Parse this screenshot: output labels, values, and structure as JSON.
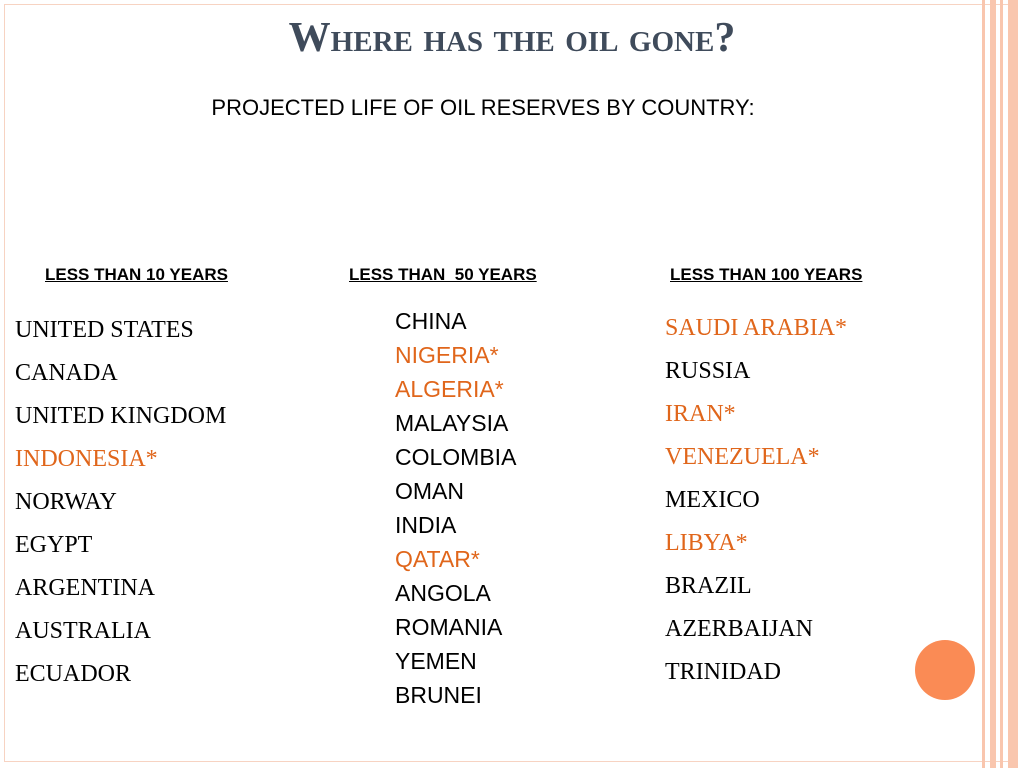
{
  "title": "Where has the oil gone?",
  "subtitle": "PROJECTED LIFE OF OIL RESERVES BY COUNTRY:",
  "columns": [
    {
      "header": "LESS THAN 10 YEARS",
      "items": [
        {
          "text": "UNITED STATES",
          "color": "#000000"
        },
        {
          "text": "CANADA",
          "color": "#000000"
        },
        {
          "text": "UNITED KINGDOM",
          "color": "#000000"
        },
        {
          "text": "INDONESIA*",
          "color": "#e0661b"
        },
        {
          "text": "NORWAY",
          "color": "#000000"
        },
        {
          "text": "EGYPT",
          "color": "#000000"
        },
        {
          "text": "ARGENTINA",
          "color": "#000000"
        },
        {
          "text": "AUSTRALIA",
          "color": "#000000"
        },
        {
          "text": "ECUADOR",
          "color": "#000000"
        }
      ]
    },
    {
      "header": "LESS THAN  50 YEARS",
      "items": [
        {
          "text": "CHINA",
          "color": "#000000"
        },
        {
          "text": "NIGERIA*",
          "color": "#e0661b"
        },
        {
          "text": "ALGERIA*",
          "color": "#e0661b"
        },
        {
          "text": "MALAYSIA",
          "color": "#000000"
        },
        {
          "text": "COLOMBIA",
          "color": "#000000"
        },
        {
          "text": "OMAN",
          "color": "#000000"
        },
        {
          "text": "INDIA",
          "color": "#000000"
        },
        {
          "text": "QATAR*",
          "color": "#e0661b"
        },
        {
          "text": "ANGOLA",
          "color": "#000000"
        },
        {
          "text": "ROMANIA",
          "color": "#000000"
        },
        {
          "text": "YEMEN",
          "color": "#000000"
        },
        {
          "text": "BRUNEI",
          "color": "#000000"
        }
      ]
    },
    {
      "header": "LESS THAN 100 YEARS",
      "items": [
        {
          "text": "SAUDI ARABIA*",
          "color": "#e0661b"
        },
        {
          "text": "RUSSIA",
          "color": "#000000"
        },
        {
          "text": "IRAN*",
          "color": "#e0661b"
        },
        {
          "text": "VENEZUELA*",
          "color": "#e0661b"
        },
        {
          "text": "MEXICO",
          "color": "#000000"
        },
        {
          "text": "LIBYA*",
          "color": "#e0661b"
        },
        {
          "text": "BRAZIL",
          "color": "#000000"
        },
        {
          "text": "AZERBAIJAN",
          "color": "#000000"
        },
        {
          "text": "TRINIDAD",
          "color": "#000000"
        }
      ]
    }
  ]
}
